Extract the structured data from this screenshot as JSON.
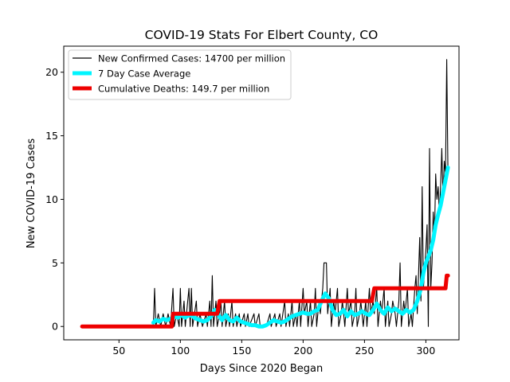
{
  "chart_data": {
    "type": "line",
    "title": "COVID-19 Stats For Elbert County, CO",
    "xlabel": "Days Since 2020 Began",
    "ylabel": "New COVID-19 Cases",
    "xlim": [
      5,
      327
    ],
    "ylim": [
      -1.05,
      22.05
    ],
    "xticks": [
      50,
      100,
      150,
      200,
      250,
      300
    ],
    "yticks": [
      0,
      5,
      10,
      15,
      20
    ],
    "grid": false,
    "legend_position": "top-left",
    "series": [
      {
        "name": "New Confirmed Cases: 14700 per million",
        "color": "#000000",
        "style": "thin",
        "points": [
          [
            78,
            0
          ],
          [
            79,
            3
          ],
          [
            80,
            0
          ],
          [
            82,
            1
          ],
          [
            84,
            0
          ],
          [
            86,
            1
          ],
          [
            88,
            0
          ],
          [
            90,
            1
          ],
          [
            92,
            0
          ],
          [
            94,
            3
          ],
          [
            95,
            0
          ],
          [
            97,
            1
          ],
          [
            99,
            0
          ],
          [
            100,
            3
          ],
          [
            101,
            0
          ],
          [
            103,
            2
          ],
          [
            104,
            0
          ],
          [
            105,
            1
          ],
          [
            107,
            3
          ],
          [
            108,
            0
          ],
          [
            109,
            3
          ],
          [
            110,
            0
          ],
          [
            113,
            2
          ],
          [
            114,
            0
          ],
          [
            116,
            1
          ],
          [
            118,
            0
          ],
          [
            121,
            1
          ],
          [
            122,
            0
          ],
          [
            124,
            2
          ],
          [
            125,
            0
          ],
          [
            126,
            4
          ],
          [
            127,
            0
          ],
          [
            129,
            2
          ],
          [
            130,
            0
          ],
          [
            132,
            1
          ],
          [
            133,
            2
          ],
          [
            134,
            0
          ],
          [
            136,
            2
          ],
          [
            137,
            0
          ],
          [
            139,
            1
          ],
          [
            140,
            0
          ],
          [
            142,
            2
          ],
          [
            143,
            0
          ],
          [
            145,
            1
          ],
          [
            146,
            0
          ],
          [
            148,
            1
          ],
          [
            149,
            0
          ],
          [
            152,
            1
          ],
          [
            153,
            0
          ],
          [
            155,
            1
          ],
          [
            156,
            0
          ],
          [
            160,
            1
          ],
          [
            161,
            0
          ],
          [
            164,
            1
          ],
          [
            165,
            0
          ],
          [
            170,
            0
          ],
          [
            173,
            1
          ],
          [
            174,
            0
          ],
          [
            177,
            1
          ],
          [
            178,
            0
          ],
          [
            181,
            1
          ],
          [
            182,
            0
          ],
          [
            185,
            2
          ],
          [
            186,
            0
          ],
          [
            188,
            1
          ],
          [
            189,
            0
          ],
          [
            191,
            2
          ],
          [
            192,
            0
          ],
          [
            194,
            1
          ],
          [
            195,
            0
          ],
          [
            197,
            2
          ],
          [
            198,
            0
          ],
          [
            200,
            3
          ],
          [
            201,
            1
          ],
          [
            203,
            2
          ],
          [
            204,
            0
          ],
          [
            206,
            2
          ],
          [
            207,
            0
          ],
          [
            209,
            1
          ],
          [
            210,
            3
          ],
          [
            211,
            0
          ],
          [
            213,
            2
          ],
          [
            214,
            1
          ],
          [
            216,
            3
          ],
          [
            217,
            5
          ],
          [
            218,
            5
          ],
          [
            219,
            5
          ],
          [
            220,
            1
          ],
          [
            222,
            3
          ],
          [
            223,
            0
          ],
          [
            225,
            2
          ],
          [
            226,
            1
          ],
          [
            228,
            3
          ],
          [
            229,
            0
          ],
          [
            231,
            1
          ],
          [
            232,
            2
          ],
          [
            234,
            0
          ],
          [
            236,
            3
          ],
          [
            237,
            1
          ],
          [
            239,
            2
          ],
          [
            240,
            0
          ],
          [
            242,
            1
          ],
          [
            243,
            3
          ],
          [
            244,
            0
          ],
          [
            246,
            1
          ],
          [
            247,
            2
          ],
          [
            249,
            0
          ],
          [
            251,
            2
          ],
          [
            252,
            0
          ],
          [
            254,
            3
          ],
          [
            255,
            1
          ],
          [
            257,
            2
          ],
          [
            258,
            1
          ],
          [
            260,
            3
          ],
          [
            261,
            0
          ],
          [
            263,
            2
          ],
          [
            264,
            1
          ],
          [
            266,
            3
          ],
          [
            267,
            0
          ],
          [
            269,
            2
          ],
          [
            270,
            0
          ],
          [
            272,
            1
          ],
          [
            273,
            2
          ],
          [
            275,
            1
          ],
          [
            276,
            0
          ],
          [
            278,
            2
          ],
          [
            279,
            5
          ],
          [
            280,
            0
          ],
          [
            282,
            2
          ],
          [
            283,
            1
          ],
          [
            285,
            3
          ],
          [
            286,
            0
          ],
          [
            288,
            1
          ],
          [
            289,
            0
          ],
          [
            291,
            3
          ],
          [
            292,
            4
          ],
          [
            293,
            1
          ],
          [
            295,
            7
          ],
          [
            296,
            2
          ],
          [
            297,
            11
          ],
          [
            298,
            3
          ],
          [
            300,
            6
          ],
          [
            301,
            8
          ],
          [
            302,
            0
          ],
          [
            303,
            14
          ],
          [
            304,
            3
          ],
          [
            305,
            5
          ],
          [
            306,
            9
          ],
          [
            307,
            7
          ],
          [
            308,
            12
          ],
          [
            309,
            10
          ],
          [
            310,
            11
          ],
          [
            311,
            9
          ],
          [
            312,
            11
          ],
          [
            313,
            14
          ],
          [
            314,
            10
          ],
          [
            315,
            13
          ],
          [
            316,
            12
          ],
          [
            317,
            21
          ],
          [
            318,
            12
          ]
        ]
      },
      {
        "name": "7 Day Case Average",
        "color": "#00f5ff",
        "style": "thick",
        "points": [
          [
            78,
            0.3
          ],
          [
            80,
            0.5
          ],
          [
            83,
            0.4
          ],
          [
            86,
            0.6
          ],
          [
            89,
            0.5
          ],
          [
            92,
            0.6
          ],
          [
            95,
            0.8
          ],
          [
            98,
            0.7
          ],
          [
            101,
            0.9
          ],
          [
            104,
            0.7
          ],
          [
            107,
            0.9
          ],
          [
            110,
            0.8
          ],
          [
            113,
            0.6
          ],
          [
            116,
            0.5
          ],
          [
            119,
            0.4
          ],
          [
            122,
            0.5
          ],
          [
            125,
            0.8
          ],
          [
            128,
            1.3
          ],
          [
            131,
            0.9
          ],
          [
            134,
            0.5
          ],
          [
            137,
            0.9
          ],
          [
            140,
            0.5
          ],
          [
            143,
            0.4
          ],
          [
            146,
            0.7
          ],
          [
            149,
            0.4
          ],
          [
            152,
            0.3
          ],
          [
            155,
            0.2
          ],
          [
            158,
            0.1
          ],
          [
            161,
            0.1
          ],
          [
            164,
            0.0
          ],
          [
            167,
            0.0
          ],
          [
            170,
            0.1
          ],
          [
            173,
            0.3
          ],
          [
            176,
            0.5
          ],
          [
            179,
            0.4
          ],
          [
            182,
            0.3
          ],
          [
            185,
            0.4
          ],
          [
            188,
            0.6
          ],
          [
            191,
            0.8
          ],
          [
            194,
            0.9
          ],
          [
            197,
            1.0
          ],
          [
            200,
            1.1
          ],
          [
            203,
            1.0
          ],
          [
            206,
            1.0
          ],
          [
            209,
            1.2
          ],
          [
            212,
            1.3
          ],
          [
            215,
            2.0
          ],
          [
            218,
            2.6
          ],
          [
            221,
            2.2
          ],
          [
            224,
            1.3
          ],
          [
            227,
            0.9
          ],
          [
            230,
            1.0
          ],
          [
            233,
            1.3
          ],
          [
            236,
            0.8
          ],
          [
            239,
            1.2
          ],
          [
            242,
            0.9
          ],
          [
            245,
            1.0
          ],
          [
            248,
            1.2
          ],
          [
            251,
            1.0
          ],
          [
            254,
            0.9
          ],
          [
            257,
            1.3
          ],
          [
            260,
            1.8
          ],
          [
            263,
            1.3
          ],
          [
            266,
            1.0
          ],
          [
            269,
            1.5
          ],
          [
            272,
            1.2
          ],
          [
            275,
            1.4
          ],
          [
            278,
            1.2
          ],
          [
            281,
            1.0
          ],
          [
            284,
            1.3
          ],
          [
            287,
            1.1
          ],
          [
            290,
            1.3
          ],
          [
            293,
            2.0
          ],
          [
            296,
            3.0
          ],
          [
            298,
            4.2
          ],
          [
            300,
            5.0
          ],
          [
            302,
            5.5
          ],
          [
            304,
            6.0
          ],
          [
            306,
            6.8
          ],
          [
            308,
            8.0
          ],
          [
            310,
            8.8
          ],
          [
            312,
            9.5
          ],
          [
            314,
            10.5
          ],
          [
            316,
            11.5
          ],
          [
            318,
            12.5
          ]
        ]
      },
      {
        "name": "Cumulative Deaths: 149.7 per million",
        "color": "#ee0000",
        "style": "thick",
        "points": [
          [
            20,
            0
          ],
          [
            93,
            0
          ],
          [
            94,
            1
          ],
          [
            130,
            1
          ],
          [
            132,
            2
          ],
          [
            256,
            2
          ],
          [
            258,
            3
          ],
          [
            316,
            3
          ],
          [
            317,
            4
          ],
          [
            318,
            4
          ]
        ]
      }
    ]
  }
}
